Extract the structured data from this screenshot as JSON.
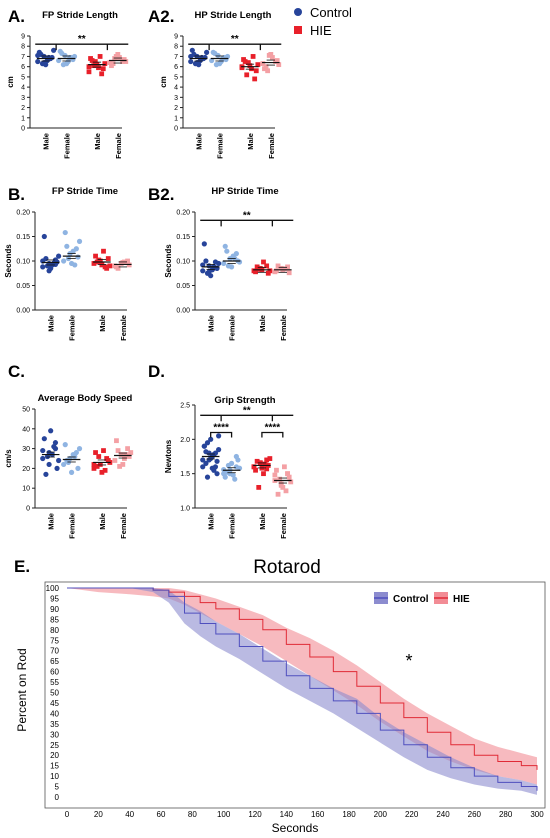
{
  "colors": {
    "control_dark": "#27449a",
    "control_light": "#8fb4e2",
    "hie_dark": "#e8202a",
    "hie_light": "#f4a0a4",
    "rotarod_control": "#4f4fbe",
    "rotarod_control_band": "#8c8ccf",
    "rotarod_hie": "#e02a36",
    "rotarod_hie_band": "#f28c95"
  },
  "legend": {
    "control": "Control",
    "hie": "HIE"
  },
  "chart_data": [
    {
      "panel": "A.",
      "type": "scatter",
      "title": "FP Stride Length",
      "ylabel": "cm",
      "ylim": [
        0,
        9
      ],
      "yticks": [
        "0",
        "1",
        "2",
        "3",
        "4",
        "5",
        "6",
        "7",
        "8",
        "9"
      ],
      "categories": [
        "Male",
        "Female",
        "Male",
        "Female"
      ],
      "groups": [
        {
          "name": "Control Male",
          "mean": 6.8,
          "values": [
            6.5,
            7.0,
            6.8,
            7.4,
            6.2,
            6.9,
            7.2,
            6.6,
            7.6,
            6.3,
            6.9,
            7.1,
            6.4,
            6.8
          ]
        },
        {
          "name": "Control Female",
          "mean": 6.8,
          "values": [
            6.6,
            7.1,
            6.9,
            7.5,
            6.3,
            6.7,
            7.3,
            6.5,
            7.0,
            6.2,
            6.9
          ]
        },
        {
          "name": "HIE Male",
          "mean": 6.2,
          "values": [
            6.0,
            6.5,
            5.3,
            6.8,
            6.2,
            5.8,
            6.6,
            5.9,
            6.3,
            6.1,
            7.0,
            5.5
          ]
        },
        {
          "name": "HIE Female",
          "mean": 6.6,
          "values": [
            6.4,
            7.0,
            6.5,
            6.1,
            7.2,
            6.7,
            6.3,
            6.9,
            6.5,
            6.8
          ]
        }
      ],
      "brackets": [
        {
          "label": "**",
          "level": 8.2
        }
      ]
    },
    {
      "panel": "A2.",
      "type": "scatter",
      "title": "HP Stride Length",
      "ylabel": "cm",
      "ylim": [
        0,
        9
      ],
      "yticks": [
        "0",
        "1",
        "2",
        "3",
        "4",
        "5",
        "6",
        "7",
        "8",
        "9"
      ],
      "categories": [
        "Male",
        "Female",
        "Male",
        "Female"
      ],
      "groups": [
        {
          "name": "Control Male",
          "mean": 6.8,
          "values": [
            6.5,
            7.0,
            6.8,
            7.6,
            6.2,
            6.9,
            7.2,
            6.6,
            7.4,
            6.3,
            6.9,
            7.0,
            6.4,
            6.8
          ]
        },
        {
          "name": "Control Female",
          "mean": 6.8,
          "values": [
            6.6,
            7.1,
            6.9,
            7.4,
            6.3,
            6.7,
            7.3,
            6.5,
            7.0,
            6.2,
            6.8
          ]
        },
        {
          "name": "HIE Male",
          "mean": 6.0,
          "values": [
            6.0,
            6.4,
            4.8,
            6.7,
            6.1,
            5.6,
            6.5,
            5.8,
            6.2,
            5.2,
            7.0,
            5.9
          ]
        },
        {
          "name": "HIE Female",
          "mean": 6.4,
          "values": [
            6.3,
            7.1,
            6.5,
            5.8,
            7.2,
            6.6,
            6.0,
            6.9,
            6.2,
            5.6
          ]
        }
      ],
      "brackets": [
        {
          "label": "**",
          "level": 8.2
        }
      ]
    },
    {
      "panel": "B.",
      "type": "scatter",
      "title": "FP Stride Time",
      "ylabel": "Seconds",
      "ylim": [
        0,
        0.2
      ],
      "yticks": [
        "0.00",
        "0.05",
        "0.10",
        "0.15",
        "0.20"
      ],
      "categories": [
        "Male",
        "Female",
        "Male",
        "Female"
      ],
      "groups": [
        {
          "name": "Control Male",
          "mean": 0.097,
          "values": [
            0.088,
            0.095,
            0.102,
            0.15,
            0.085,
            0.098,
            0.105,
            0.092,
            0.11,
            0.09,
            0.096,
            0.1,
            0.08,
            0.093
          ]
        },
        {
          "name": "Control Female",
          "mean": 0.11,
          "values": [
            0.1,
            0.115,
            0.125,
            0.158,
            0.095,
            0.108,
            0.13,
            0.12,
            0.14,
            0.105,
            0.092
          ]
        },
        {
          "name": "HIE Male",
          "mean": 0.098,
          "values": [
            0.095,
            0.1,
            0.085,
            0.11,
            0.092,
            0.105,
            0.098,
            0.12,
            0.09,
            0.102,
            0.088
          ]
        },
        {
          "name": "HIE Female",
          "mean": 0.093,
          "values": [
            0.09,
            0.095,
            0.1,
            0.088,
            0.097,
            0.092,
            0.085,
            0.098
          ]
        }
      ],
      "brackets": []
    },
    {
      "panel": "B2.",
      "type": "scatter",
      "title": "HP Stride Time",
      "ylabel": "Seconds",
      "ylim": [
        0,
        0.2
      ],
      "yticks": [
        "0.00",
        "0.05",
        "0.10",
        "0.15",
        "0.20"
      ],
      "categories": [
        "Male",
        "Female",
        "Male",
        "Female"
      ],
      "groups": [
        {
          "name": "Control Male",
          "mean": 0.088,
          "values": [
            0.08,
            0.09,
            0.098,
            0.135,
            0.07,
            0.085,
            0.1,
            0.082,
            0.095,
            0.075,
            0.088,
            0.092,
            0.078,
            0.086
          ]
        },
        {
          "name": "Control Female",
          "mean": 0.1,
          "values": [
            0.095,
            0.105,
            0.115,
            0.13,
            0.088,
            0.1,
            0.12,
            0.11,
            0.098,
            0.09,
            0.105
          ]
        },
        {
          "name": "HIE Male",
          "mean": 0.082,
          "values": [
            0.08,
            0.085,
            0.09,
            0.078,
            0.082,
            0.075,
            0.088,
            0.098,
            0.08,
            0.083
          ]
        },
        {
          "name": "HIE Female",
          "mean": 0.082,
          "values": [
            0.078,
            0.085,
            0.088,
            0.08,
            0.082,
            0.076,
            0.09,
            0.084
          ]
        }
      ],
      "brackets": [
        {
          "label": "**",
          "level": 0.183
        }
      ]
    },
    {
      "panel": "C.",
      "type": "scatter",
      "title": "Average Body Speed",
      "ylabel": "cm/s",
      "ylim": [
        0,
        50
      ],
      "yticks": [
        "0",
        "10",
        "20",
        "30",
        "40",
        "50"
      ],
      "categories": [
        "Male",
        "Female",
        "Male",
        "Female"
      ],
      "groups": [
        {
          "name": "Control Male",
          "mean": 27,
          "values": [
            25,
            28,
            30,
            35,
            39,
            20,
            17,
            27,
            24,
            26,
            31,
            29,
            22,
            33
          ]
        },
        {
          "name": "Control Female",
          "mean": 24.5,
          "values": [
            22,
            25,
            28,
            32,
            18,
            20,
            24,
            27,
            30,
            23,
            26
          ]
        },
        {
          "name": "HIE Male",
          "mean": 23,
          "values": [
            20,
            22,
            25,
            28,
            18,
            24,
            21,
            29,
            23,
            26,
            19,
            22
          ]
        },
        {
          "name": "HIE Female",
          "mean": 26.5,
          "values": [
            24,
            27,
            30,
            34,
            22,
            26,
            29,
            25,
            28,
            21,
            27
          ]
        }
      ],
      "brackets": []
    },
    {
      "panel": "D.",
      "type": "scatter",
      "title": "Grip Strength",
      "ylabel": "Newtons",
      "ylim": [
        1.0,
        2.5
      ],
      "yticks": [
        "1.0",
        "1.5",
        "2.0",
        "2.5"
      ],
      "categories": [
        "Male",
        "Female",
        "Male",
        "Female"
      ],
      "groups": [
        {
          "name": "Control Male",
          "mean": 1.75,
          "values": [
            1.6,
            1.7,
            1.8,
            1.9,
            2.0,
            1.5,
            1.65,
            1.75,
            1.85,
            1.95,
            1.55,
            1.7,
            1.8,
            1.6,
            1.9,
            1.72,
            1.68,
            1.82,
            1.58,
            2.05,
            1.45,
            1.78
          ]
        },
        {
          "name": "Control Female",
          "mean": 1.55,
          "values": [
            1.5,
            1.55,
            1.6,
            1.45,
            1.65,
            1.7,
            1.52,
            1.48,
            1.58,
            1.62,
            1.42,
            1.56,
            1.5,
            1.75,
            1.53
          ]
        },
        {
          "name": "HIE Male",
          "mean": 1.62,
          "values": [
            1.6,
            1.65,
            1.7,
            1.55,
            1.58,
            1.62,
            1.68,
            1.5,
            1.72,
            1.3,
            1.64,
            1.6,
            1.66,
            1.57
          ]
        },
        {
          "name": "HIE Female",
          "mean": 1.4,
          "values": [
            1.4,
            1.35,
            1.5,
            1.55,
            1.3,
            1.45,
            1.2,
            1.6,
            1.38,
            1.42,
            1.25,
            1.48,
            1.33,
            1.5
          ]
        }
      ],
      "brackets": [
        {
          "label": "****",
          "level": 2.1,
          "pair": [
            0,
            1
          ]
        },
        {
          "label": "****",
          "level": 2.1,
          "pair": [
            2,
            3
          ]
        },
        {
          "label": "**",
          "level": 2.35
        }
      ]
    },
    {
      "panel": "E.",
      "type": "line",
      "title": "Rotarod",
      "xlabel": "Seconds",
      "ylabel": "Percent on Rod",
      "xlim": [
        0,
        300
      ],
      "ylim": [
        0,
        100
      ],
      "xticks": [
        "0",
        "20",
        "40",
        "60",
        "80",
        "100",
        "120",
        "140",
        "160",
        "180",
        "200",
        "220",
        "240",
        "260",
        "280",
        "300"
      ],
      "yticks": [
        "0",
        "5",
        "10",
        "15",
        "20",
        "25",
        "30",
        "35",
        "40",
        "45",
        "50",
        "55",
        "60",
        "65",
        "70",
        "75",
        "80",
        "85",
        "90",
        "95",
        "100"
      ],
      "annotation": "*",
      "series": [
        {
          "name": "Control",
          "x": [
            0,
            20,
            40,
            55,
            65,
            75,
            85,
            95,
            110,
            125,
            140,
            155,
            170,
            185,
            200,
            215,
            230,
            245,
            260,
            275,
            290,
            300
          ],
          "y": [
            100,
            100,
            100,
            99,
            96,
            88,
            83,
            78,
            72,
            65,
            58,
            52,
            46,
            40,
            32,
            25,
            19,
            14,
            10,
            7,
            5,
            3
          ],
          "lower": [
            100,
            100,
            100,
            98,
            93,
            83,
            77,
            72,
            66,
            59,
            52,
            46,
            40,
            33,
            26,
            19,
            13,
            9,
            6,
            4,
            3,
            1
          ],
          "upper": [
            100,
            100,
            100,
            100,
            99,
            93,
            89,
            84,
            78,
            71,
            64,
            58,
            52,
            47,
            38,
            31,
            25,
            19,
            14,
            10,
            8,
            6
          ]
        },
        {
          "name": "HIE",
          "x": [
            0,
            20,
            40,
            55,
            65,
            75,
            85,
            95,
            110,
            125,
            140,
            155,
            170,
            185,
            200,
            215,
            230,
            245,
            260,
            275,
            290,
            300
          ],
          "y": [
            100,
            100,
            100,
            99,
            98,
            96,
            93,
            90,
            85,
            80,
            73,
            67,
            60,
            53,
            45,
            38,
            31,
            25,
            20,
            17,
            15,
            13
          ],
          "lower": [
            100,
            98,
            97,
            96,
            95,
            92,
            88,
            84,
            78,
            72,
            65,
            58,
            51,
            44,
            36,
            29,
            22,
            17,
            13,
            10,
            8,
            6
          ],
          "upper": [
            100,
            100,
            100,
            100,
            100,
            99,
            97,
            95,
            91,
            87,
            81,
            76,
            70,
            63,
            55,
            47,
            40,
            34,
            28,
            24,
            21,
            19
          ]
        }
      ]
    }
  ]
}
